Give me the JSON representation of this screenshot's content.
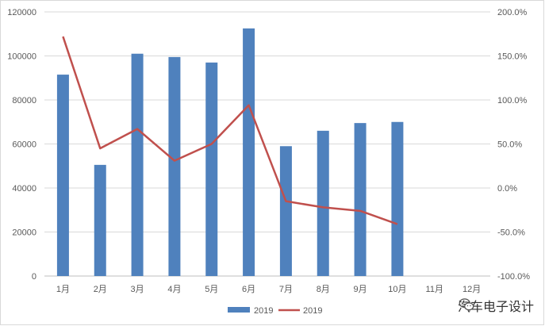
{
  "chart_data": {
    "type": "bar",
    "categories": [
      "1月",
      "2月",
      "3月",
      "4月",
      "5月",
      "6月",
      "7月",
      "8月",
      "9月",
      "10月",
      "11月",
      "12月"
    ],
    "series": [
      {
        "name": "2019",
        "type": "bar",
        "axis": "left",
        "color": "#4f81bd",
        "values": [
          91500,
          50500,
          101000,
          99500,
          97000,
          112500,
          59000,
          66000,
          69500,
          70000,
          null,
          null
        ]
      },
      {
        "name": "2019",
        "type": "line",
        "axis": "right",
        "color": "#c0504d",
        "values": [
          172,
          45,
          67,
          31,
          50,
          94,
          -15,
          -22,
          -26,
          -41,
          null,
          null
        ]
      }
    ],
    "ylim_left": [
      0,
      120000
    ],
    "yticks_left": [
      "0",
      "20000",
      "40000",
      "60000",
      "80000",
      "100000",
      "120000"
    ],
    "ylim_right": [
      -100,
      200
    ],
    "yticks_right": [
      "-100.0%",
      "-50.0%",
      "0.0%",
      "50.0%",
      "100.0%",
      "150.0%",
      "200.0%"
    ],
    "grid": true,
    "legend_position": "bottom"
  },
  "watermark": {
    "text": "汽车电子设计",
    "icon": "wechat-icon"
  }
}
